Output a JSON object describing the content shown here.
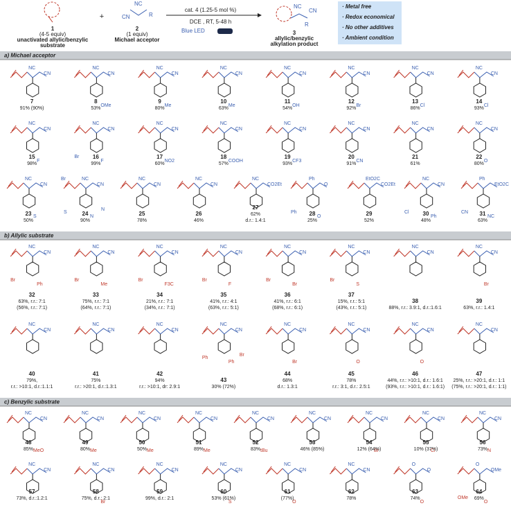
{
  "header": {
    "s1": {
      "id": "1",
      "equiv": "(4-5 equiv)",
      "name1": "unactivated allylic/benzylic",
      "name2": "substrate"
    },
    "plus": "+",
    "s2": {
      "id": "2",
      "equiv": "(1 equiv)",
      "name": "Michael acceptor",
      "labels": [
        "NC",
        "CN",
        "R"
      ]
    },
    "conditions": {
      "cat": "cat. 4 (1.25-5 mol %)",
      "solvent": "DCE , RT, 5-48 h",
      "light": "Blue LED"
    },
    "s3": {
      "id": "3",
      "name1": "allylic/benzylic",
      "name2": "alkylation product",
      "labels": [
        "NC",
        "CN",
        "R"
      ]
    },
    "bullets": [
      "· Metal free",
      "· Redox economical",
      "· No other additives",
      "· Ambient condition"
    ]
  },
  "sections": [
    {
      "title": "a) Michael acceptor",
      "compounds": [
        {
          "id": "7",
          "lines": [
            "91% (90%)"
          ],
          "labels": [
            "NC",
            "CN"
          ]
        },
        {
          "id": "8",
          "lines": [
            "53%"
          ],
          "labels": [
            "NC",
            "CN",
            "OMe"
          ]
        },
        {
          "id": "9",
          "lines": [
            "80%"
          ],
          "labels": [
            "NC",
            "CN",
            "Me"
          ]
        },
        {
          "id": "10",
          "lines": [
            "63%"
          ],
          "labels": [
            "NC",
            "CN",
            "Me"
          ]
        },
        {
          "id": "11",
          "lines": [
            "54%"
          ],
          "labels": [
            "NC",
            "CN",
            "OH"
          ]
        },
        {
          "id": "12",
          "lines": [
            "92%"
          ],
          "labels": [
            "NC",
            "CN",
            "Br"
          ]
        },
        {
          "id": "13",
          "lines": [
            "86%"
          ],
          "labels": [
            "NC",
            "CN",
            "Cl"
          ]
        },
        {
          "id": "14",
          "lines": [
            "93%"
          ],
          "labels": [
            "NC",
            "CN",
            "Cl"
          ]
        },
        {
          "id": "15",
          "lines": [
            "98%"
          ],
          "labels": [
            "NC",
            "CN",
            "F"
          ]
        },
        {
          "id": "16",
          "lines": [
            "99%"
          ],
          "labels": [
            "NC",
            "CN",
            "F",
            "Br"
          ]
        },
        {
          "id": "17",
          "lines": [
            "60%"
          ],
          "labels": [
            "NC",
            "CN",
            "NO2"
          ]
        },
        {
          "id": "18",
          "lines": [
            "57%"
          ],
          "labels": [
            "NC",
            "CN",
            "COOH"
          ]
        },
        {
          "id": "19",
          "lines": [
            "93%"
          ],
          "labels": [
            "NC",
            "CN",
            "CF3"
          ]
        },
        {
          "id": "20",
          "lines": [
            "91%"
          ],
          "labels": [
            "NC",
            "CN",
            "CN"
          ]
        },
        {
          "id": "21",
          "lines": [
            "61%"
          ],
          "labels": [
            "NC",
            "CN"
          ]
        },
        {
          "id": "22",
          "lines": [
            "80%"
          ],
          "labels": [
            "NC",
            "CN",
            "O"
          ]
        },
        {
          "id": "23",
          "lines": [
            "50%"
          ],
          "labels": [
            "NC",
            "CN",
            "S"
          ]
        },
        {
          "id": "24",
          "lines": [
            "90%"
          ],
          "labels": [
            "NC",
            "CN",
            "N",
            "S",
            "N",
            "Br"
          ]
        },
        {
          "id": "25",
          "lines": [
            "78%"
          ],
          "labels": [
            "NC",
            "CN"
          ]
        },
        {
          "id": "26",
          "lines": [
            "46%"
          ],
          "labels": [
            "NC",
            "CN"
          ]
        },
        {
          "id": "27",
          "lines": [
            "62%",
            "d.r.: 1.4:1"
          ],
          "labels": [
            "NC",
            "CO2Et"
          ]
        },
        {
          "id": "28",
          "lines": [
            "25%"
          ],
          "labels": [
            "Ph",
            "O",
            "O",
            "Ph"
          ]
        },
        {
          "id": "29",
          "lines": [
            "52%"
          ],
          "labels": [
            "EtO2C",
            "CO2Et"
          ]
        },
        {
          "id": "30",
          "lines": [
            "48%"
          ],
          "labels": [
            "NC",
            "CN",
            "Ph",
            "Cl"
          ]
        },
        {
          "id": "31",
          "lines": [
            "63%"
          ],
          "labels": [
            "Ph",
            "EtO2C",
            "NC",
            "CN"
          ]
        }
      ]
    },
    {
      "title": "b) Allylic substrate",
      "compounds": [
        {
          "id": "32",
          "lines": [
            "63%, r.r.: 7:1",
            "(56%, r.r.: 7:1)"
          ],
          "labels": [
            "NC",
            "CN",
            "Ph",
            "Br"
          ]
        },
        {
          "id": "33",
          "lines": [
            "75%, r.r.: 7:1",
            "(64%, r.r.: 7:1)"
          ],
          "labels": [
            "NC",
            "CN",
            "Me",
            "Br"
          ]
        },
        {
          "id": "34",
          "lines": [
            "21%, r.r.: 7:1",
            "(34%, r.r.: 7:1)"
          ],
          "labels": [
            "NC",
            "CN",
            "F3C",
            "Br"
          ]
        },
        {
          "id": "35",
          "lines": [
            "41%, r.r.: 4:1",
            "(63%, r.r.: 5:1)"
          ],
          "labels": [
            "NC",
            "CN",
            "F",
            "Br"
          ]
        },
        {
          "id": "36",
          "lines": [
            "41%, r.r.: 6:1",
            "(68%, r.r.: 6:1)"
          ],
          "labels": [
            "NC",
            "CN",
            "Br",
            "Br"
          ]
        },
        {
          "id": "37",
          "lines": [
            "15%, r.r.: 5:1",
            "(43%, r.r.: 5:1)"
          ],
          "labels": [
            "NC",
            "CN",
            "S",
            "Br"
          ]
        },
        {
          "id": "38",
          "lines": [
            "88%, r.r.: 3.9:1, d.r.:1.6:1"
          ],
          "labels": [
            "NC",
            "CN"
          ]
        },
        {
          "id": "39",
          "lines": [
            "63%, r.r.: 1.4:1"
          ],
          "labels": [
            "NC",
            "CN",
            "Br"
          ]
        },
        {
          "id": "40",
          "lines": [
            "79%,",
            "r.r.: >10:1, d.r.:1.1:1"
          ],
          "labels": [
            "NC",
            "CN"
          ]
        },
        {
          "id": "41",
          "lines": [
            "75%",
            "r.r.: >20:1, d.r.:1.3:1"
          ],
          "labels": [
            "NC",
            "CN"
          ]
        },
        {
          "id": "42",
          "lines": [
            "94%",
            "r.r.: >10:1, dr: 2.9:1"
          ],
          "labels": [
            "NC",
            "CN"
          ]
        },
        {
          "id": "43",
          "lines": [
            "30% (72%)"
          ],
          "labels": [
            "NC",
            "CN",
            "Ph",
            "Ph",
            "Br"
          ]
        },
        {
          "id": "44",
          "lines": [
            "68%",
            "d.r.: 1.3:1"
          ],
          "labels": [
            "NC",
            "CN",
            "Br"
          ]
        },
        {
          "id": "45",
          "lines": [
            "78%",
            "r.r.: 3:1, d.r.: 2.5:1"
          ],
          "labels": [
            "NC",
            "CN",
            "O"
          ]
        },
        {
          "id": "46",
          "lines": [
            "44%, r.r.: >10:1, d.r.: 1.6:1",
            "(93%, r.r.: >10:1, d.r.: 1.6:1)"
          ],
          "labels": [
            "NC",
            "CN",
            "O"
          ]
        },
        {
          "id": "47",
          "lines": [
            "25%, r.r.: >20:1, d.r.: 1:1",
            "(75%, r.r.: >20:1, d.r.: 1:1)"
          ],
          "labels": [
            "NC",
            "CN"
          ]
        }
      ]
    },
    {
      "title": "c) Benzylic substrate",
      "compounds": [
        {
          "id": "48",
          "lines": [
            "85%"
          ],
          "labels": [
            "NC",
            "CN",
            "MeO"
          ]
        },
        {
          "id": "49",
          "lines": [
            "80%"
          ],
          "labels": [
            "NC",
            "CN",
            "Me"
          ]
        },
        {
          "id": "50",
          "lines": [
            "50%"
          ],
          "labels": [
            "NC",
            "CN",
            "Me"
          ]
        },
        {
          "id": "51",
          "lines": [
            "89%"
          ],
          "labels": [
            "NC",
            "CN",
            "Me"
          ]
        },
        {
          "id": "52",
          "lines": [
            "83%"
          ],
          "labels": [
            "NC",
            "CN",
            "tBu"
          ]
        },
        {
          "id": "53",
          "lines": [
            "46% (85%)"
          ],
          "labels": [
            "NC",
            "CN"
          ]
        },
        {
          "id": "54",
          "lines": [
            "12% (64%)"
          ],
          "labels": [
            "NC",
            "CN",
            "Br"
          ]
        },
        {
          "id": "55",
          "lines": [
            "10% (37%)"
          ],
          "labels": [
            "NC",
            "CN",
            "Cl"
          ]
        },
        {
          "id": "56",
          "lines": [
            "73%"
          ],
          "labels": [
            "NC",
            "CN",
            "N"
          ]
        },
        {
          "id": "57",
          "lines": [
            "73%, d.r.:1.2:1"
          ],
          "labels": [
            "NC",
            "CN"
          ]
        },
        {
          "id": "58",
          "lines": [
            "75%, d.r.: 2:1"
          ],
          "labels": [
            "NC",
            "CN",
            "Br"
          ]
        },
        {
          "id": "59",
          "lines": [
            "99%, d.r.: 2:1"
          ],
          "labels": [
            "NC",
            "CN"
          ]
        },
        {
          "id": "60",
          "lines": [
            "53% (61%)"
          ],
          "labels": [
            "NC",
            "CN",
            "S"
          ]
        },
        {
          "id": "61",
          "lines": [
            "(77%)"
          ],
          "labels": [
            "NC",
            "CN",
            "O"
          ]
        },
        {
          "id": "62",
          "lines": [
            "78%"
          ],
          "labels": [
            "NC",
            "CN"
          ]
        },
        {
          "id": "63",
          "lines": [
            "74%"
          ],
          "labels": [
            "O",
            "O",
            "O"
          ]
        },
        {
          "id": "64",
          "lines": [
            "69%"
          ],
          "labels": [
            "O",
            "OMe",
            "O",
            "OMe"
          ]
        }
      ]
    }
  ]
}
